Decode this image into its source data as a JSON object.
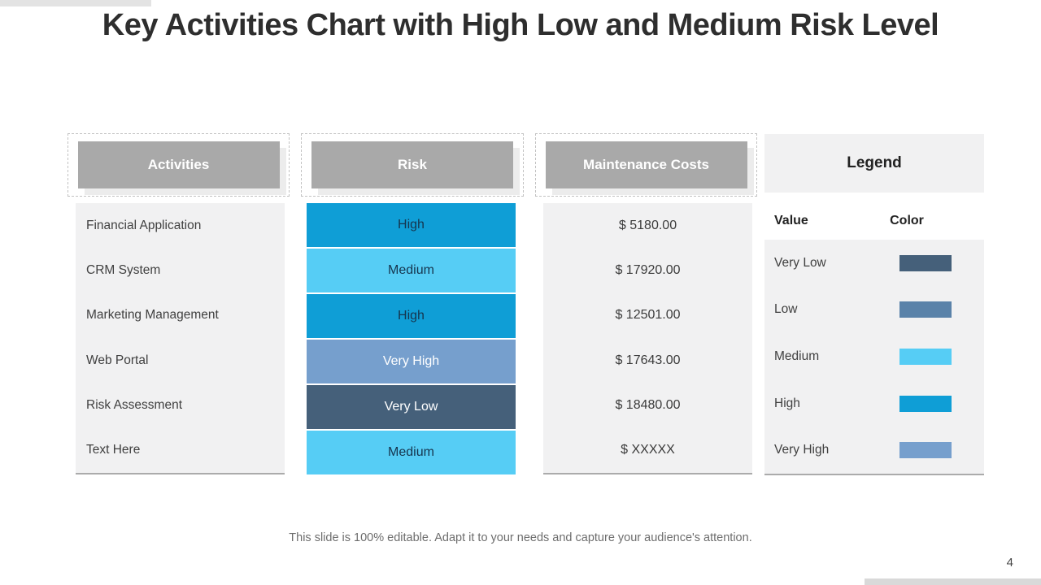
{
  "slide": {
    "title": "Key Activities Chart with High Low and Medium Risk Level",
    "footer": "This slide is 100% editable. Adapt it to your needs and capture your audience's attention.",
    "page_number": "4"
  },
  "table": {
    "activities": {
      "header": "Activities",
      "rows": [
        "Financial Application",
        "CRM System",
        "Marketing Management",
        "Web Portal",
        "Risk Assessment",
        "Text Here"
      ]
    },
    "risk": {
      "header": "Risk",
      "rows": [
        {
          "label": "High",
          "bg": "#0f9ed6",
          "fg": "#16354e"
        },
        {
          "label": "Medium",
          "bg": "#56cdf5",
          "fg": "#16354e"
        },
        {
          "label": "High",
          "bg": "#0f9ed6",
          "fg": "#16354e"
        },
        {
          "label": "Very High",
          "bg": "#769fcd",
          "fg": "#ffffff"
        },
        {
          "label": "Very Low",
          "bg": "#45607a",
          "fg": "#ffffff"
        },
        {
          "label": "Medium",
          "bg": "#56cdf5",
          "fg": "#16354e"
        }
      ]
    },
    "costs": {
      "header": "Maintenance Costs",
      "rows": [
        "$ 5180.00",
        "$ 17920.00",
        "$ 12501.00",
        "$ 17643.00",
        "$ 18480.00",
        "$ XXXXX"
      ]
    }
  },
  "legend": {
    "title": "Legend",
    "value_header": "Value",
    "color_header": "Color",
    "items": [
      {
        "label": "Very Low",
        "color": "#45607a"
      },
      {
        "label": "Low",
        "color": "#5a82a9"
      },
      {
        "label": "Medium",
        "color": "#56cdf5"
      },
      {
        "label": "High",
        "color": "#0f9ed6"
      },
      {
        "label": "Very High",
        "color": "#769fcd"
      }
    ]
  },
  "colors": {
    "header_fill": "#a9a9a9",
    "header_text": "#ffffff",
    "panel_bg": "#f1f1f2",
    "panel_border": "#ababab",
    "accent_bar_top": "#e3e3e3",
    "accent_bar_bottom": "#d9d9d9",
    "high": "#0f9ed6",
    "medium": "#56cdf5",
    "low": "#5a82a9",
    "very_low": "#45607a",
    "very_high": "#769fcd"
  },
  "chart_data": {
    "type": "table",
    "title": "Key Activities Chart with High Low and Medium Risk Level",
    "columns": [
      "Activities",
      "Risk",
      "Maintenance Costs"
    ],
    "rows": [
      [
        "Financial Application",
        "High",
        "$ 5180.00"
      ],
      [
        "CRM System",
        "Medium",
        "$ 17920.00"
      ],
      [
        "Marketing Management",
        "High",
        "$ 12501.00"
      ],
      [
        "Web Portal",
        "Very High",
        "$ 17643.00"
      ],
      [
        "Risk Assessment",
        "Very Low",
        "$ 18480.00"
      ],
      [
        "Text Here",
        "Medium",
        "$ XXXXX"
      ]
    ],
    "legend": {
      "position": "right",
      "entries": [
        {
          "value": "Very Low",
          "color": "#45607a"
        },
        {
          "value": "Low",
          "color": "#5a82a9"
        },
        {
          "value": "Medium",
          "color": "#56cdf5"
        },
        {
          "value": "High",
          "color": "#0f9ed6"
        },
        {
          "value": "Very High",
          "color": "#769fcd"
        }
      ]
    }
  }
}
